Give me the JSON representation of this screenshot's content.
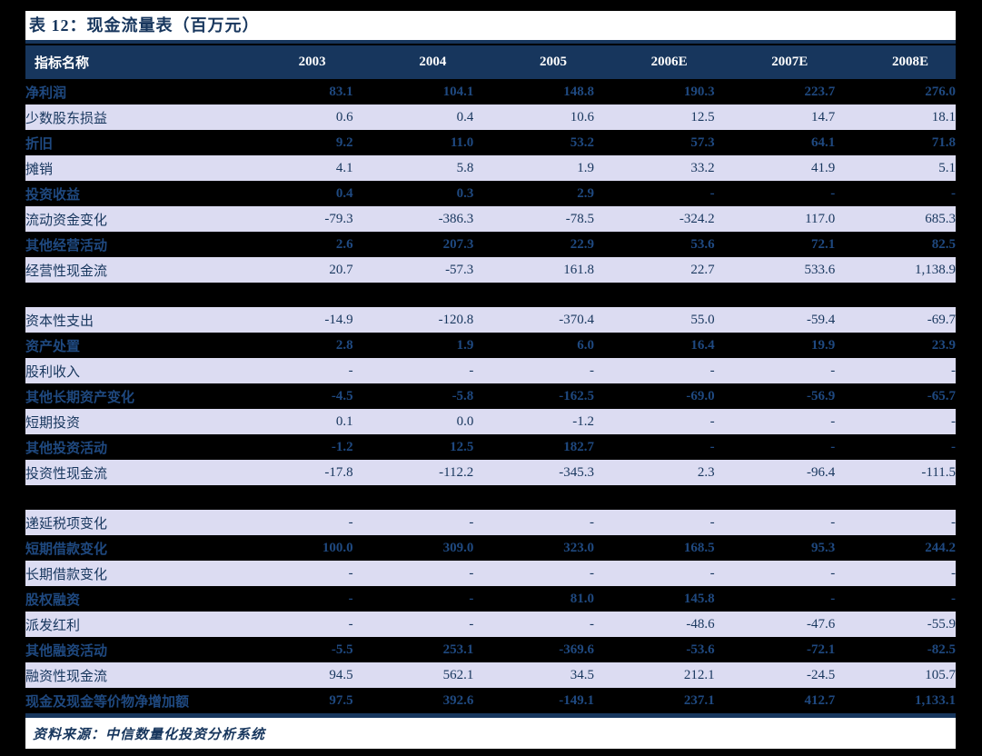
{
  "page": {
    "title": "表 12：现金流量表（百万元）",
    "source_note": "资料来源：中信数量化投资分析系统"
  },
  "colors": {
    "header_bg": "#17365D",
    "header_text": "#ffffff",
    "light_row_bg": "#DCDCF2",
    "dark_row_bg": "#000000",
    "text_navy": "#17365D",
    "dark_row_text": "#1F4980",
    "rule_line": "#17365D",
    "page_margin": "#000000",
    "content_bg": "#ffffff"
  },
  "table": {
    "columns": [
      "指标名称",
      "2003",
      "2004",
      "2005",
      "2006E",
      "2007E",
      "2008E"
    ],
    "rows": [
      {
        "label": "净利润",
        "values": [
          "83.1",
          "104.1",
          "148.8",
          "190.3",
          "223.7",
          "276.0"
        ],
        "bg": "dark"
      },
      {
        "label": "少数股东损益",
        "values": [
          "0.6",
          "0.4",
          "10.6",
          "12.5",
          "14.7",
          "18.1"
        ],
        "bg": "light"
      },
      {
        "label": "折旧",
        "values": [
          "9.2",
          "11.0",
          "53.2",
          "57.3",
          "64.1",
          "71.8"
        ],
        "bg": "dark"
      },
      {
        "label": "摊销",
        "values": [
          "4.1",
          "5.8",
          "1.9",
          "33.2",
          "41.9",
          "5.1"
        ],
        "bg": "light"
      },
      {
        "label": "投资收益",
        "values": [
          "0.4",
          "0.3",
          "2.9",
          "-",
          "-",
          "-"
        ],
        "bg": "dark"
      },
      {
        "label": "流动资金变化",
        "values": [
          "-79.3",
          "-386.3",
          "-78.5",
          "-324.2",
          "117.0",
          "685.3"
        ],
        "bg": "light"
      },
      {
        "label": "其他经营活动",
        "values": [
          "2.6",
          "207.3",
          "22.9",
          "53.6",
          "72.1",
          "82.5"
        ],
        "bg": "dark"
      },
      {
        "label": "经营性现金流",
        "values": [
          "20.7",
          "-57.3",
          "161.8",
          "22.7",
          "533.6",
          "1,138.9"
        ],
        "bg": "light"
      },
      {
        "type": "spacer"
      },
      {
        "label": "资本性支出",
        "values": [
          "-14.9",
          "-120.8",
          "-370.4",
          "55.0",
          "-59.4",
          "-69.7"
        ],
        "bg": "light"
      },
      {
        "label": "资产处置",
        "values": [
          "2.8",
          "1.9",
          "6.0",
          "16.4",
          "19.9",
          "23.9"
        ],
        "bg": "dark"
      },
      {
        "label": "股利收入",
        "values": [
          "-",
          "-",
          "-",
          "-",
          "-",
          "-"
        ],
        "bg": "light"
      },
      {
        "label": "其他长期资产变化",
        "values": [
          "-4.5",
          "-5.8",
          "-162.5",
          "-69.0",
          "-56.9",
          "-65.7"
        ],
        "bg": "dark"
      },
      {
        "label": "短期投资",
        "values": [
          "0.1",
          "0.0",
          "-1.2",
          "-",
          "-",
          "-"
        ],
        "bg": "light"
      },
      {
        "label": "其他投资活动",
        "values": [
          "-1.2",
          "12.5",
          "182.7",
          "-",
          "-",
          "-"
        ],
        "bg": "dark"
      },
      {
        "label": "投资性现金流",
        "values": [
          "-17.8",
          "-112.2",
          "-345.3",
          "2.3",
          "-96.4",
          "-111.5"
        ],
        "bg": "light"
      },
      {
        "type": "spacer"
      },
      {
        "label": "递延税项变化",
        "values": [
          "-",
          "-",
          "-",
          "-",
          "-",
          "-"
        ],
        "bg": "light"
      },
      {
        "label": "短期借款变化",
        "values": [
          "100.0",
          "309.0",
          "323.0",
          "168.5",
          "95.3",
          "244.2"
        ],
        "bg": "dark"
      },
      {
        "label": "长期借款变化",
        "values": [
          "-",
          "-",
          "-",
          "-",
          "-",
          "-"
        ],
        "bg": "light"
      },
      {
        "label": "股权融资",
        "values": [
          "-",
          "-",
          "81.0",
          "145.8",
          "-",
          "-"
        ],
        "bg": "dark"
      },
      {
        "label": "派发红利",
        "values": [
          "-",
          "-",
          "-",
          "-48.6",
          "-47.6",
          "-55.9"
        ],
        "bg": "light"
      },
      {
        "label": "其他融资活动",
        "values": [
          "-5.5",
          "253.1",
          "-369.6",
          "-53.6",
          "-72.1",
          "-82.5"
        ],
        "bg": "dark"
      },
      {
        "label": "融资性现金流",
        "values": [
          "94.5",
          "562.1",
          "34.5",
          "212.1",
          "-24.5",
          "105.7"
        ],
        "bg": "light"
      },
      {
        "label": "现金及现金等价物净增加额",
        "values": [
          "97.5",
          "392.6",
          "-149.1",
          "237.1",
          "412.7",
          "1,133.1"
        ],
        "bg": "dark"
      }
    ]
  }
}
